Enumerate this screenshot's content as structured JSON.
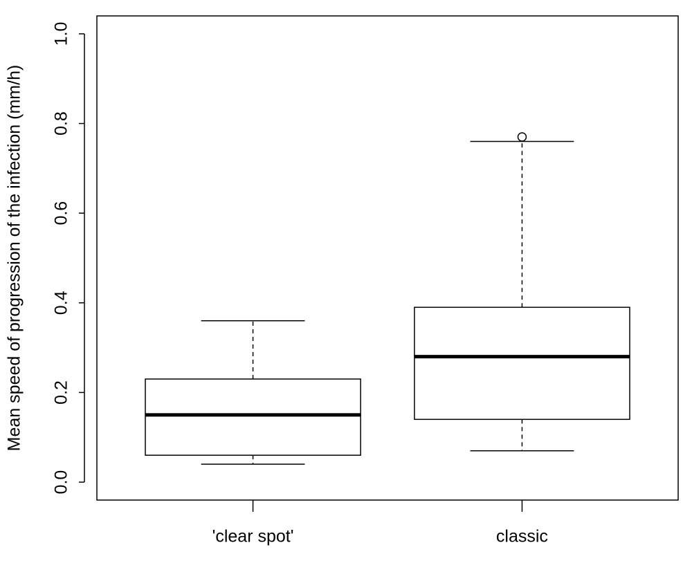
{
  "chart_data": {
    "type": "box",
    "ylabel": "Mean speed of progression of the infection (mm/h)",
    "categories": [
      "'clear spot'",
      "classic"
    ],
    "boxes": [
      {
        "min": 0.04,
        "q1": 0.06,
        "median": 0.15,
        "q3": 0.23,
        "max": 0.36,
        "outliers": []
      },
      {
        "min": 0.07,
        "q1": 0.14,
        "median": 0.28,
        "q3": 0.39,
        "max": 0.76,
        "outliers": [
          0.77
        ]
      }
    ],
    "color": "#ffffff",
    "ylim": [
      -0.04,
      1.04
    ],
    "yticks": [
      {
        "value": 0,
        "label": "0.0"
      },
      0.2,
      0.4,
      0.6,
      0.8,
      {
        "value": 1,
        "label": "1.0"
      }
    ]
  }
}
